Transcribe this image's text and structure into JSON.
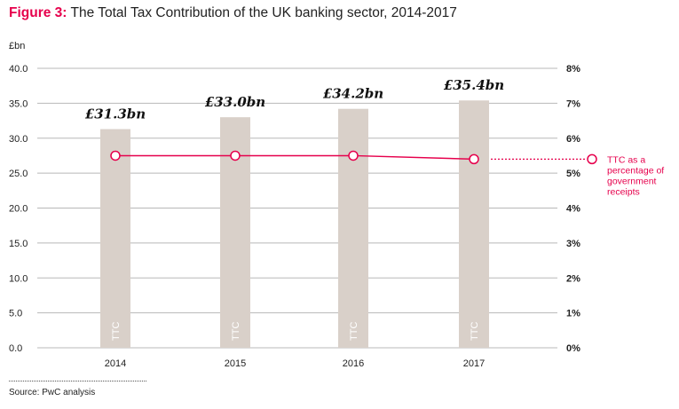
{
  "figure": {
    "label": "Figure 3:",
    "title": "The Total Tax Contribution of the UK banking sector, 2014-2017",
    "source": "Source: PwC analysis"
  },
  "chart_data": {
    "type": "bar",
    "categories": [
      "2014",
      "2015",
      "2016",
      "2017"
    ],
    "series": [
      {
        "values": [
          31.3,
          33.0,
          34.2,
          35.4
        ],
        "value_labels": [
          "£31.3bn",
          "£33.0bn",
          "£34.2bn",
          "£35.4bn"
        ],
        "bar_text": "TTC",
        "axis": "left"
      },
      {
        "name": "TTC as a percentage of government receipts",
        "name_lines": [
          "TTC as a",
          "percentage of",
          "government",
          "receipts"
        ],
        "values": [
          5.5,
          5.5,
          5.5,
          5.4
        ],
        "axis": "right",
        "type": "line"
      }
    ],
    "ylabel": "£bn",
    "ylim": [
      0,
      40
    ],
    "yticks": [
      "0.0",
      "5.0",
      "10.0",
      "15.0",
      "20.0",
      "25.0",
      "30.0",
      "35.0",
      "40.0"
    ],
    "y2lim": [
      0,
      8
    ],
    "y2ticks": [
      "0%",
      "1%",
      "2%",
      "3%",
      "4%",
      "5%",
      "6%",
      "7%",
      "8%"
    ],
    "grid": true,
    "legend_placement": "right",
    "colors": {
      "bar": "#d9d0c9",
      "line": "#e6004c",
      "grid": "#b8b8b8",
      "bar_text": "#ffffff"
    }
  }
}
